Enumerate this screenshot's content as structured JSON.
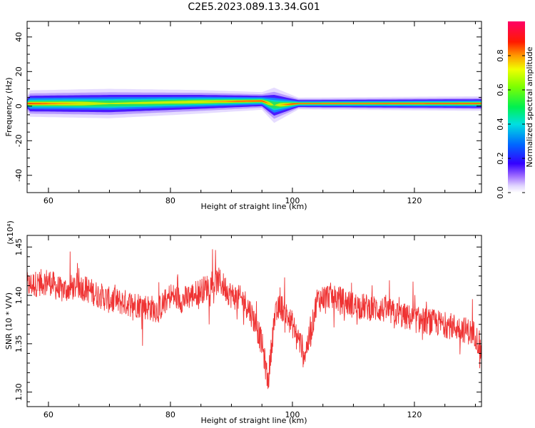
{
  "title": "C2E5.2023.089.13.34.G01",
  "chart_data": [
    {
      "type": "heatmap",
      "xlabel": "Height of straight line (km)",
      "ylabel": "Frequency (Hz)",
      "xlim": [
        56.5,
        131
      ],
      "ylim": [
        -50,
        49
      ],
      "xticks": [
        60,
        80,
        100,
        120
      ],
      "yticks": [
        40,
        20,
        0,
        -20,
        -40
      ],
      "colorbar": {
        "label": "Normalized spectral amplitude",
        "range": [
          0,
          1
        ],
        "ticks": [
          0.0,
          0.2,
          0.4,
          0.6,
          0.8
        ]
      },
      "band_profile": [
        {
          "height": 57,
          "center_hz": 1.5,
          "half_width_hz": 4.5,
          "core_amp": 0.8
        },
        {
          "height": 70,
          "center_hz": 1.5,
          "half_width_hz": 5,
          "core_amp": 0.5
        },
        {
          "height": 85,
          "center_hz": 2.5,
          "half_width_hz": 4,
          "core_amp": 0.6
        },
        {
          "height": 95,
          "center_hz": 3,
          "half_width_hz": 3,
          "core_amp": 0.85
        },
        {
          "height": 97,
          "center_hz": 0.5,
          "half_width_hz": 6,
          "core_amp": 0.45
        },
        {
          "height": 101,
          "center_hz": 1.5,
          "half_width_hz": 2,
          "core_amp": 1.0
        },
        {
          "height": 131,
          "center_hz": 1.5,
          "half_width_hz": 2.5,
          "core_amp": 0.95
        }
      ]
    },
    {
      "type": "line",
      "xlabel": "Height of straight line (km)",
      "ylabel": "SNR (10 * V/V)",
      "y_scale_label": "(x10⁴)",
      "xlim": [
        56.5,
        131
      ],
      "ylim": [
        1.285,
        1.462
      ],
      "xticks": [
        60,
        80,
        100,
        120
      ],
      "yticks": [
        1.3,
        1.35,
        1.4,
        1.45
      ],
      "ytick_labels": [
        "1.30",
        "1.35",
        "1.40",
        "1.45"
      ],
      "color": "#ef3333",
      "series": [
        {
          "x": [
            56.5,
            60,
            62,
            65,
            70,
            75,
            78,
            80,
            82,
            85,
            88,
            90,
            92,
            93,
            94,
            95,
            96,
            97,
            98,
            100,
            102,
            103,
            104,
            106,
            110,
            115,
            120,
            125,
            128,
            130,
            131
          ],
          "y": [
            1.41,
            1.415,
            1.405,
            1.41,
            1.395,
            1.39,
            1.385,
            1.4,
            1.395,
            1.405,
            1.415,
            1.4,
            1.395,
            1.385,
            1.37,
            1.35,
            1.31,
            1.375,
            1.39,
            1.37,
            1.34,
            1.36,
            1.395,
            1.4,
            1.39,
            1.385,
            1.375,
            1.37,
            1.365,
            1.36,
            1.34
          ]
        }
      ]
    }
  ]
}
